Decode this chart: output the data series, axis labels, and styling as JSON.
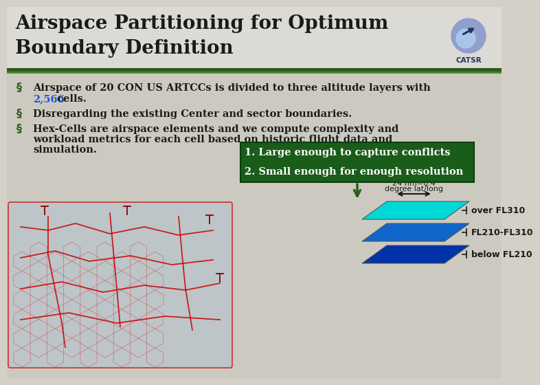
{
  "title_line1": "Airspace Partitioning for Optimum",
  "title_line2": "Boundary Definition",
  "title_fontsize": 20,
  "title_color": "#1a1a1a",
  "bg_color": "#d4d0c8",
  "header_bg": "#d8d4cc",
  "divider_color_dark": "#2d5a1b",
  "divider_color_light": "#4a8a2a",
  "bullet1_normal": "Airspace of 20 CON US ARTCCs is divided to three altitude layers with",
  "bullet1_highlight": "2,566",
  "bullet1_end": " cells.",
  "bullet2": "Disregarding the existing Center and sector boundaries.",
  "bullet3_line1": "Hex-Cells are airspace elements and we compute complexity and",
  "bullet3_line2": "workload metrics for each cell based on historic flight data and",
  "bullet3_line3": "simulation.",
  "green_box_line1": "1. Large enough to capture conflicts",
  "green_box_line2": "2. Small enough for enough resolution",
  "green_box_bg": "#1a5c1a",
  "green_box_text_color": "#ffffff",
  "label_24nm_line1": "24 nm=0.4",
  "label_24nm_line2": "degree lat/long",
  "label_fl310": "over FL310",
  "label_fl210_310": "FL210-FL310",
  "label_below_fl210": "below FL210",
  "cyan_color": "#00d8d8",
  "blue_color": "#1166cc",
  "dark_blue_color": "#0033aa",
  "bullet_color": "#2d5a1b",
  "highlight_color": "#2255dd",
  "text_color": "#1a1a1a",
  "font_size_bullet": 10.5,
  "catsr_text_color": "#223366"
}
